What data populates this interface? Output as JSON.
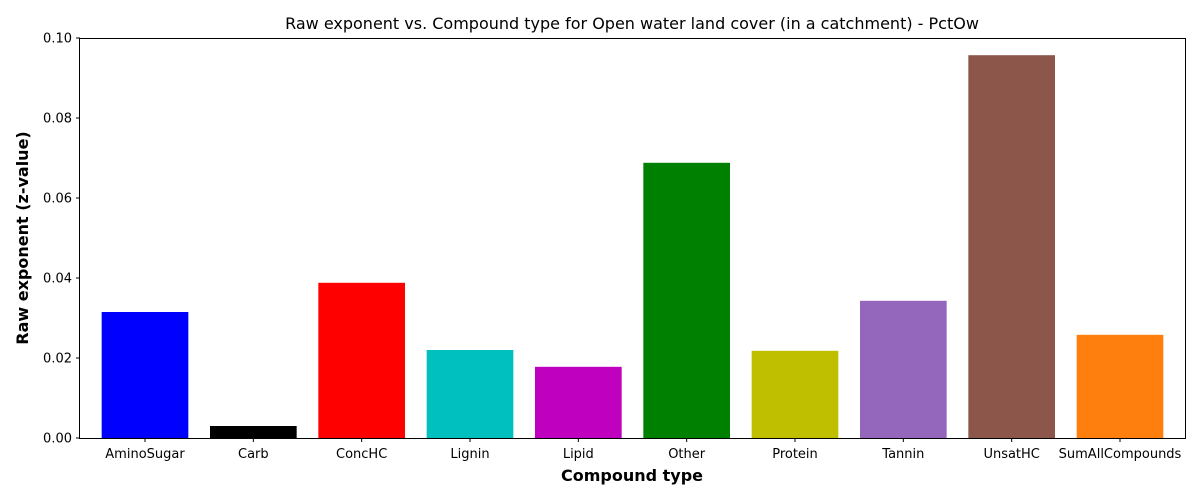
{
  "chart_data": {
    "type": "bar",
    "title": "Raw exponent vs. Compound type for Open water land cover (in a catchment) - PctOw",
    "xlabel": "Compound type",
    "ylabel": "Raw exponent (z-value)",
    "ylim": [
      0,
      0.1
    ],
    "yticks": [
      "0.00",
      "0.02",
      "0.04",
      "0.06",
      "0.08",
      "0.10"
    ],
    "grid": false,
    "categories": [
      "AminoSugar",
      "Carb",
      "ConcHC",
      "Lignin",
      "Lipid",
      "Other",
      "Protein",
      "Tannin",
      "UnsatHC",
      "SumAllCompounds"
    ],
    "values": [
      0.0315,
      0.003,
      0.0388,
      0.022,
      0.0178,
      0.0688,
      0.0218,
      0.0343,
      0.0957,
      0.0258
    ],
    "colors": [
      "#0000ff",
      "#000000",
      "#ff0000",
      "#00bfbf",
      "#bf00bf",
      "#008000",
      "#bfbf00",
      "#9467bd",
      "#8c564b",
      "#ff7f0e"
    ]
  }
}
